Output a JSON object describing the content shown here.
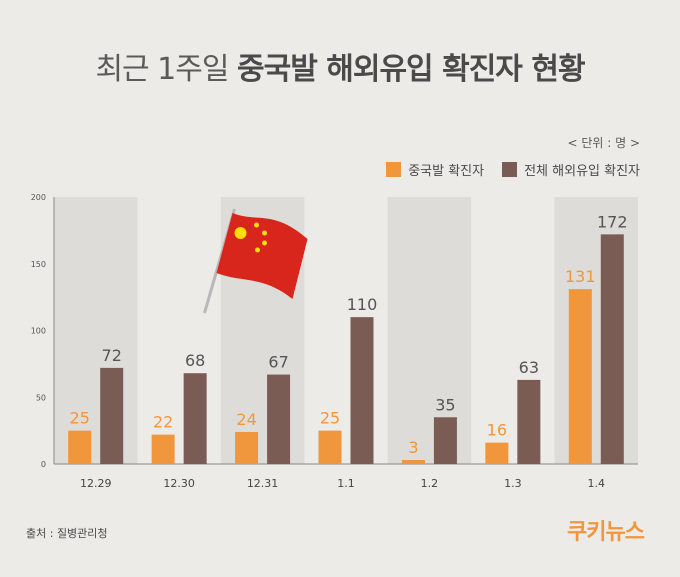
{
  "title": {
    "light": "최근 1주일",
    "bold": "중국발 해외유입 확진자 현황"
  },
  "unit_label": "< 단위 : 명 >",
  "source": "출처 : 질병관리청",
  "logo": "쿠키뉴스",
  "colors": {
    "china": "#f0963c",
    "overseas": "#7a5c54",
    "band": "#dedcd8",
    "background": "#ecebe8",
    "axis": "#888888"
  },
  "flag_icon": "china-flag-icon",
  "chart_data": {
    "type": "bar",
    "categories": [
      "12.29",
      "12.30",
      "12.31",
      "1.1",
      "1.2",
      "1.3",
      "1.4"
    ],
    "series": [
      {
        "name": "중국발 확진자",
        "values": [
          25,
          22,
          24,
          25,
          3,
          16,
          131
        ]
      },
      {
        "name": "전체 해외유입 확진자",
        "values": [
          72,
          68,
          67,
          110,
          35,
          63,
          172
        ]
      }
    ],
    "yticks": [
      0,
      50,
      100,
      150,
      200
    ],
    "ylim": [
      0,
      200
    ],
    "legend_position": "top-right"
  }
}
